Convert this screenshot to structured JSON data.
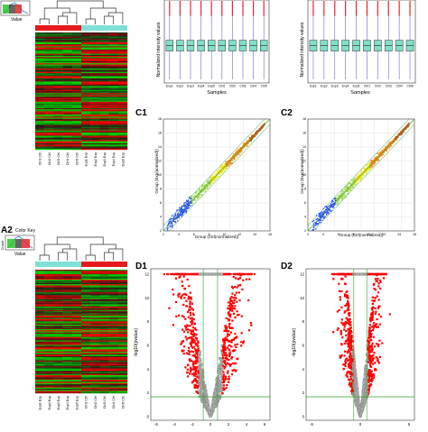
{
  "panels": {
    "a1": {
      "key_value_label": "Value",
      "samples": [
        "Ctrl1 Ctrl",
        "Ctrl2 Ctrl",
        "Ctrl3 Ctrl",
        "Ctrl4 Ctrl",
        "Ctrl5 Ctrl",
        "Exp1 Exp",
        "Exp2 Exp",
        "Exp3 Exp",
        "Exp4 Exp",
        "Exp5 Exp"
      ]
    },
    "a2": {
      "label": "A2",
      "key_title": "Color Key",
      "key_count_label": "Count",
      "key_value_label": "Value",
      "samples": [
        "Exp1 Exp",
        "Exp2 Exp",
        "Exp3 Exp",
        "Exp4 Exp",
        "Exp5 Exp",
        "Ctrl1 Ctrl",
        "Ctrl2 Ctrl",
        "Ctrl3 Ctrl",
        "Ctrl4 Ctrl",
        "Ctrl5 Ctrl"
      ]
    },
    "b1": {
      "ylabel": "Normalized intensity values",
      "xlabel": "Samples",
      "ticks": [
        "Exp1",
        "Exp2",
        "Exp3",
        "Exp4",
        "Exp5",
        "Ctrl1",
        "Ctrl2",
        "Ctrl3",
        "Ctrl4",
        "Ctrl5"
      ]
    },
    "b2": {
      "ylabel": "Normalized intensity values",
      "xlabel": "Samples",
      "ticks": [
        "Exp1",
        "Exp2",
        "Exp3",
        "Exp4",
        "Exp5",
        "Ctrl1",
        "Ctrl2",
        "Ctrl3",
        "Ctrl4",
        "Ctrl5"
      ]
    },
    "c1": {
      "label": "C1",
      "xlabel": "Group (Ctrl(normalized))",
      "ylabel": "Group (Exp(normalized))",
      "xticks": [
        "2",
        "4",
        "6",
        "8",
        "10",
        "12",
        "14",
        "16"
      ],
      "yticks": [
        "2",
        "4",
        "6",
        "8",
        "10",
        "12",
        "14",
        "16",
        "18"
      ]
    },
    "c2": {
      "label": "C2",
      "xlabel": "Group (Ctrl(normalized))",
      "ylabel": "Group (Exp(normalized))",
      "xticks": [
        "2",
        "4",
        "6",
        "8",
        "10",
        "12",
        "14",
        "16"
      ],
      "yticks": [
        "2",
        "4",
        "6",
        "8",
        "10",
        "12",
        "14",
        "16",
        "18"
      ]
    },
    "d1": {
      "label": "D1",
      "ylabel": "-log10(pvalue)",
      "xticks": [
        "-6",
        "-4",
        "-2",
        "0",
        "2",
        "4",
        "6"
      ],
      "yticks": [
        "0",
        "2",
        "4",
        "6",
        "8",
        "10",
        "12"
      ]
    },
    "d2": {
      "label": "D2",
      "ylabel": "-log10(pvalue)",
      "xticks": [
        "-5",
        "0",
        "5"
      ],
      "yticks": [
        "0",
        "2",
        "4",
        "6",
        "8",
        "10",
        "12"
      ]
    }
  },
  "colors": {
    "heat_red": "#e41a1c",
    "heat_green": "#1ec21e",
    "box_fill": "#7fe0c8",
    "outlier_red": "#e41a1c",
    "scatter_blue": "#2b4bff",
    "scatter_yellow": "#f2e21b",
    "scatter_orange": "#f28a1b",
    "volcano_red": "#ff0000",
    "volcano_grey": "#b0b0b0",
    "threshold_green": "#2aa02a",
    "bar_exp": "#e41a1c",
    "bar_ctrl": "#7fe0d8"
  }
}
